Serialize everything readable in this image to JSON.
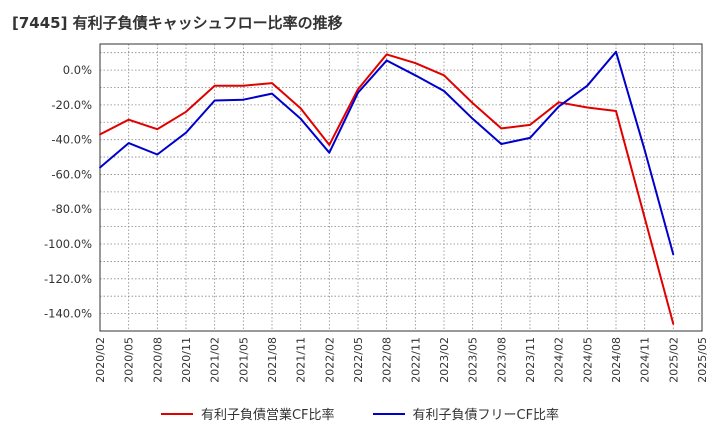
{
  "chart_data": {
    "type": "line",
    "title": "[7445]  有利子負債キャッシュフロー比率の推移",
    "x": [
      "2020/02",
      "2020/05",
      "2020/08",
      "2020/11",
      "2021/02",
      "2021/05",
      "2021/08",
      "2021/11",
      "2022/02",
      "2022/05",
      "2022/08",
      "2022/11",
      "2023/02",
      "2023/05",
      "2023/08",
      "2023/11",
      "2024/02",
      "2024/05",
      "2024/08",
      "2024/11",
      "2025/02",
      "2025/05"
    ],
    "ylim": [
      -150,
      15
    ],
    "yticks": [
      0,
      -20,
      -40,
      -60,
      -80,
      -100,
      -120,
      -140
    ],
    "ytick_labels": [
      "0.0%",
      "-20.0%",
      "-40.0%",
      "-60.0%",
      "-80.0%",
      "-100.0%",
      "-120.0%",
      "-140.0%"
    ],
    "grid": true,
    "legend_position": "bottom",
    "series": [
      {
        "name": "有利子負債営業CF比率",
        "color": "#e00000",
        "points": [
          [
            "2020/02",
            -37
          ],
          [
            "2020/05",
            -28.5
          ],
          [
            "2020/08",
            -34
          ],
          [
            "2020/11",
            -24
          ],
          [
            "2021/02",
            -9
          ],
          [
            "2021/05",
            -9
          ],
          [
            "2021/08",
            -7.5
          ],
          [
            "2021/11",
            -22
          ],
          [
            "2022/02",
            -43
          ],
          [
            "2022/05",
            -11
          ],
          [
            "2022/08",
            9
          ],
          [
            "2022/11",
            4
          ],
          [
            "2023/02",
            -3
          ],
          [
            "2023/05",
            -19
          ],
          [
            "2023/08",
            -33.5
          ],
          [
            "2023/11",
            -31.5
          ],
          [
            "2024/02",
            -18.5
          ],
          [
            "2024/05",
            -21.5
          ],
          [
            "2024/08",
            -23.5
          ],
          [
            "2024/11",
            -85
          ],
          [
            "2025/02",
            -146
          ]
        ]
      },
      {
        "name": "有利子負債フリーCF比率",
        "color": "#0000cc",
        "points": [
          [
            "2020/02",
            -56
          ],
          [
            "2020/05",
            -42
          ],
          [
            "2020/08",
            -48.5
          ],
          [
            "2020/11",
            -36
          ],
          [
            "2021/02",
            -17.5
          ],
          [
            "2021/05",
            -17
          ],
          [
            "2021/08",
            -13.5
          ],
          [
            "2021/11",
            -28
          ],
          [
            "2022/02",
            -47.5
          ],
          [
            "2022/05",
            -13
          ],
          [
            "2022/08",
            5.5
          ],
          [
            "2022/11",
            -3
          ],
          [
            "2023/02",
            -12
          ],
          [
            "2023/05",
            -28
          ],
          [
            "2023/08",
            -42.5
          ],
          [
            "2023/11",
            -39
          ],
          [
            "2024/02",
            -21
          ],
          [
            "2024/05",
            -9
          ],
          [
            "2024/08",
            10.5
          ],
          [
            "2024/11",
            -46
          ],
          [
            "2025/02",
            -106
          ]
        ]
      }
    ]
  }
}
